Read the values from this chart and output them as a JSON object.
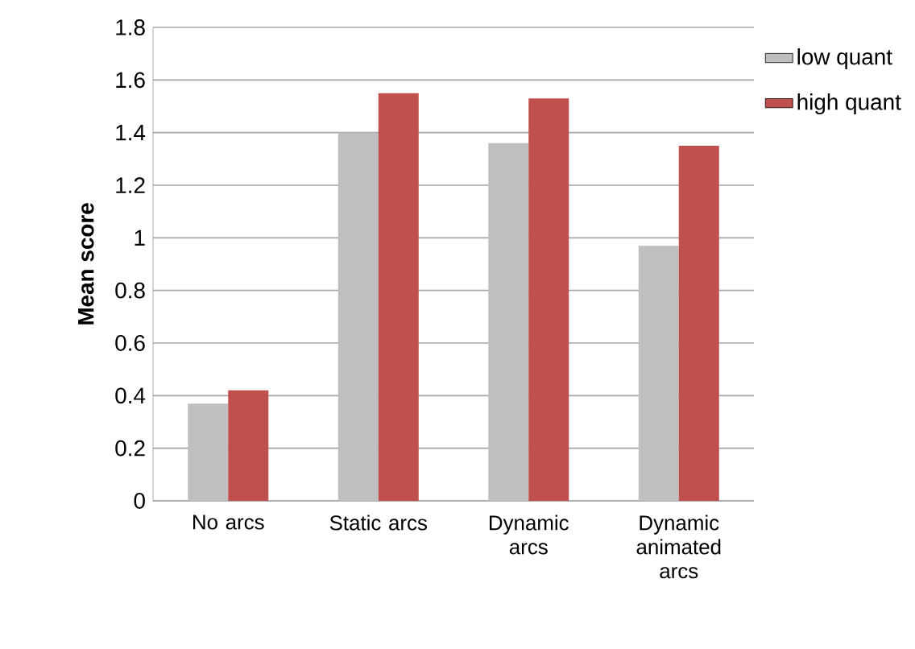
{
  "chart_data": {
    "type": "bar",
    "ylabel": "Mean score",
    "categories": [
      "No arcs",
      "Static arcs",
      "Dynamic arcs",
      "Dynamic animated arcs"
    ],
    "series": [
      {
        "name": "low quant",
        "color": "#bfbfbf",
        "values": [
          0.37,
          1.4,
          1.36,
          0.97
        ]
      },
      {
        "name": "high quant",
        "color": "#c0504d",
        "values": [
          0.42,
          1.55,
          1.53,
          1.35
        ]
      }
    ],
    "ylim": [
      0,
      1.8
    ],
    "yticks": [
      0,
      0.2,
      0.4,
      0.6,
      0.8,
      1,
      1.2,
      1.4,
      1.6,
      1.8
    ],
    "grid": "y",
    "legend": "top right"
  }
}
